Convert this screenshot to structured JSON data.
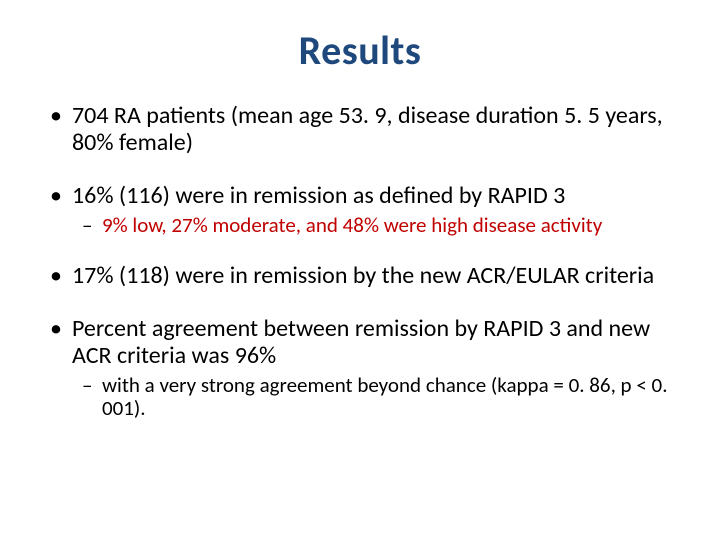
{
  "slide": {
    "title": "Results",
    "title_color": "#1f497d",
    "background_color": "#ffffff",
    "text_color": "#000000",
    "accent_color": "#c00000",
    "bullets": [
      {
        "text": "704 RA patients (mean age 53. 9, disease duration 5. 5 years, 80% female)",
        "sub": []
      },
      {
        "text": "16% (116)  were in remission as defined by RAPID 3",
        "sub": [
          {
            "text": "9% low, 27% moderate, and 48% were high disease activity",
            "color": "#c00000"
          }
        ]
      },
      {
        "text": "17% (118) were in remission by the new ACR/EULAR criteria",
        "sub": []
      },
      {
        "text": "Percent agreement between remission by RAPID 3 and new ACR criteria was 96%",
        "sub": [
          {
            "text": "with a very strong agreement beyond chance (kappa = 0. 86, p < 0. 001)."
          }
        ]
      }
    ],
    "fonts": {
      "title_size_pt": 40,
      "body_size_pt": 24,
      "sub_size_pt": 21,
      "family": "Calibri"
    }
  }
}
